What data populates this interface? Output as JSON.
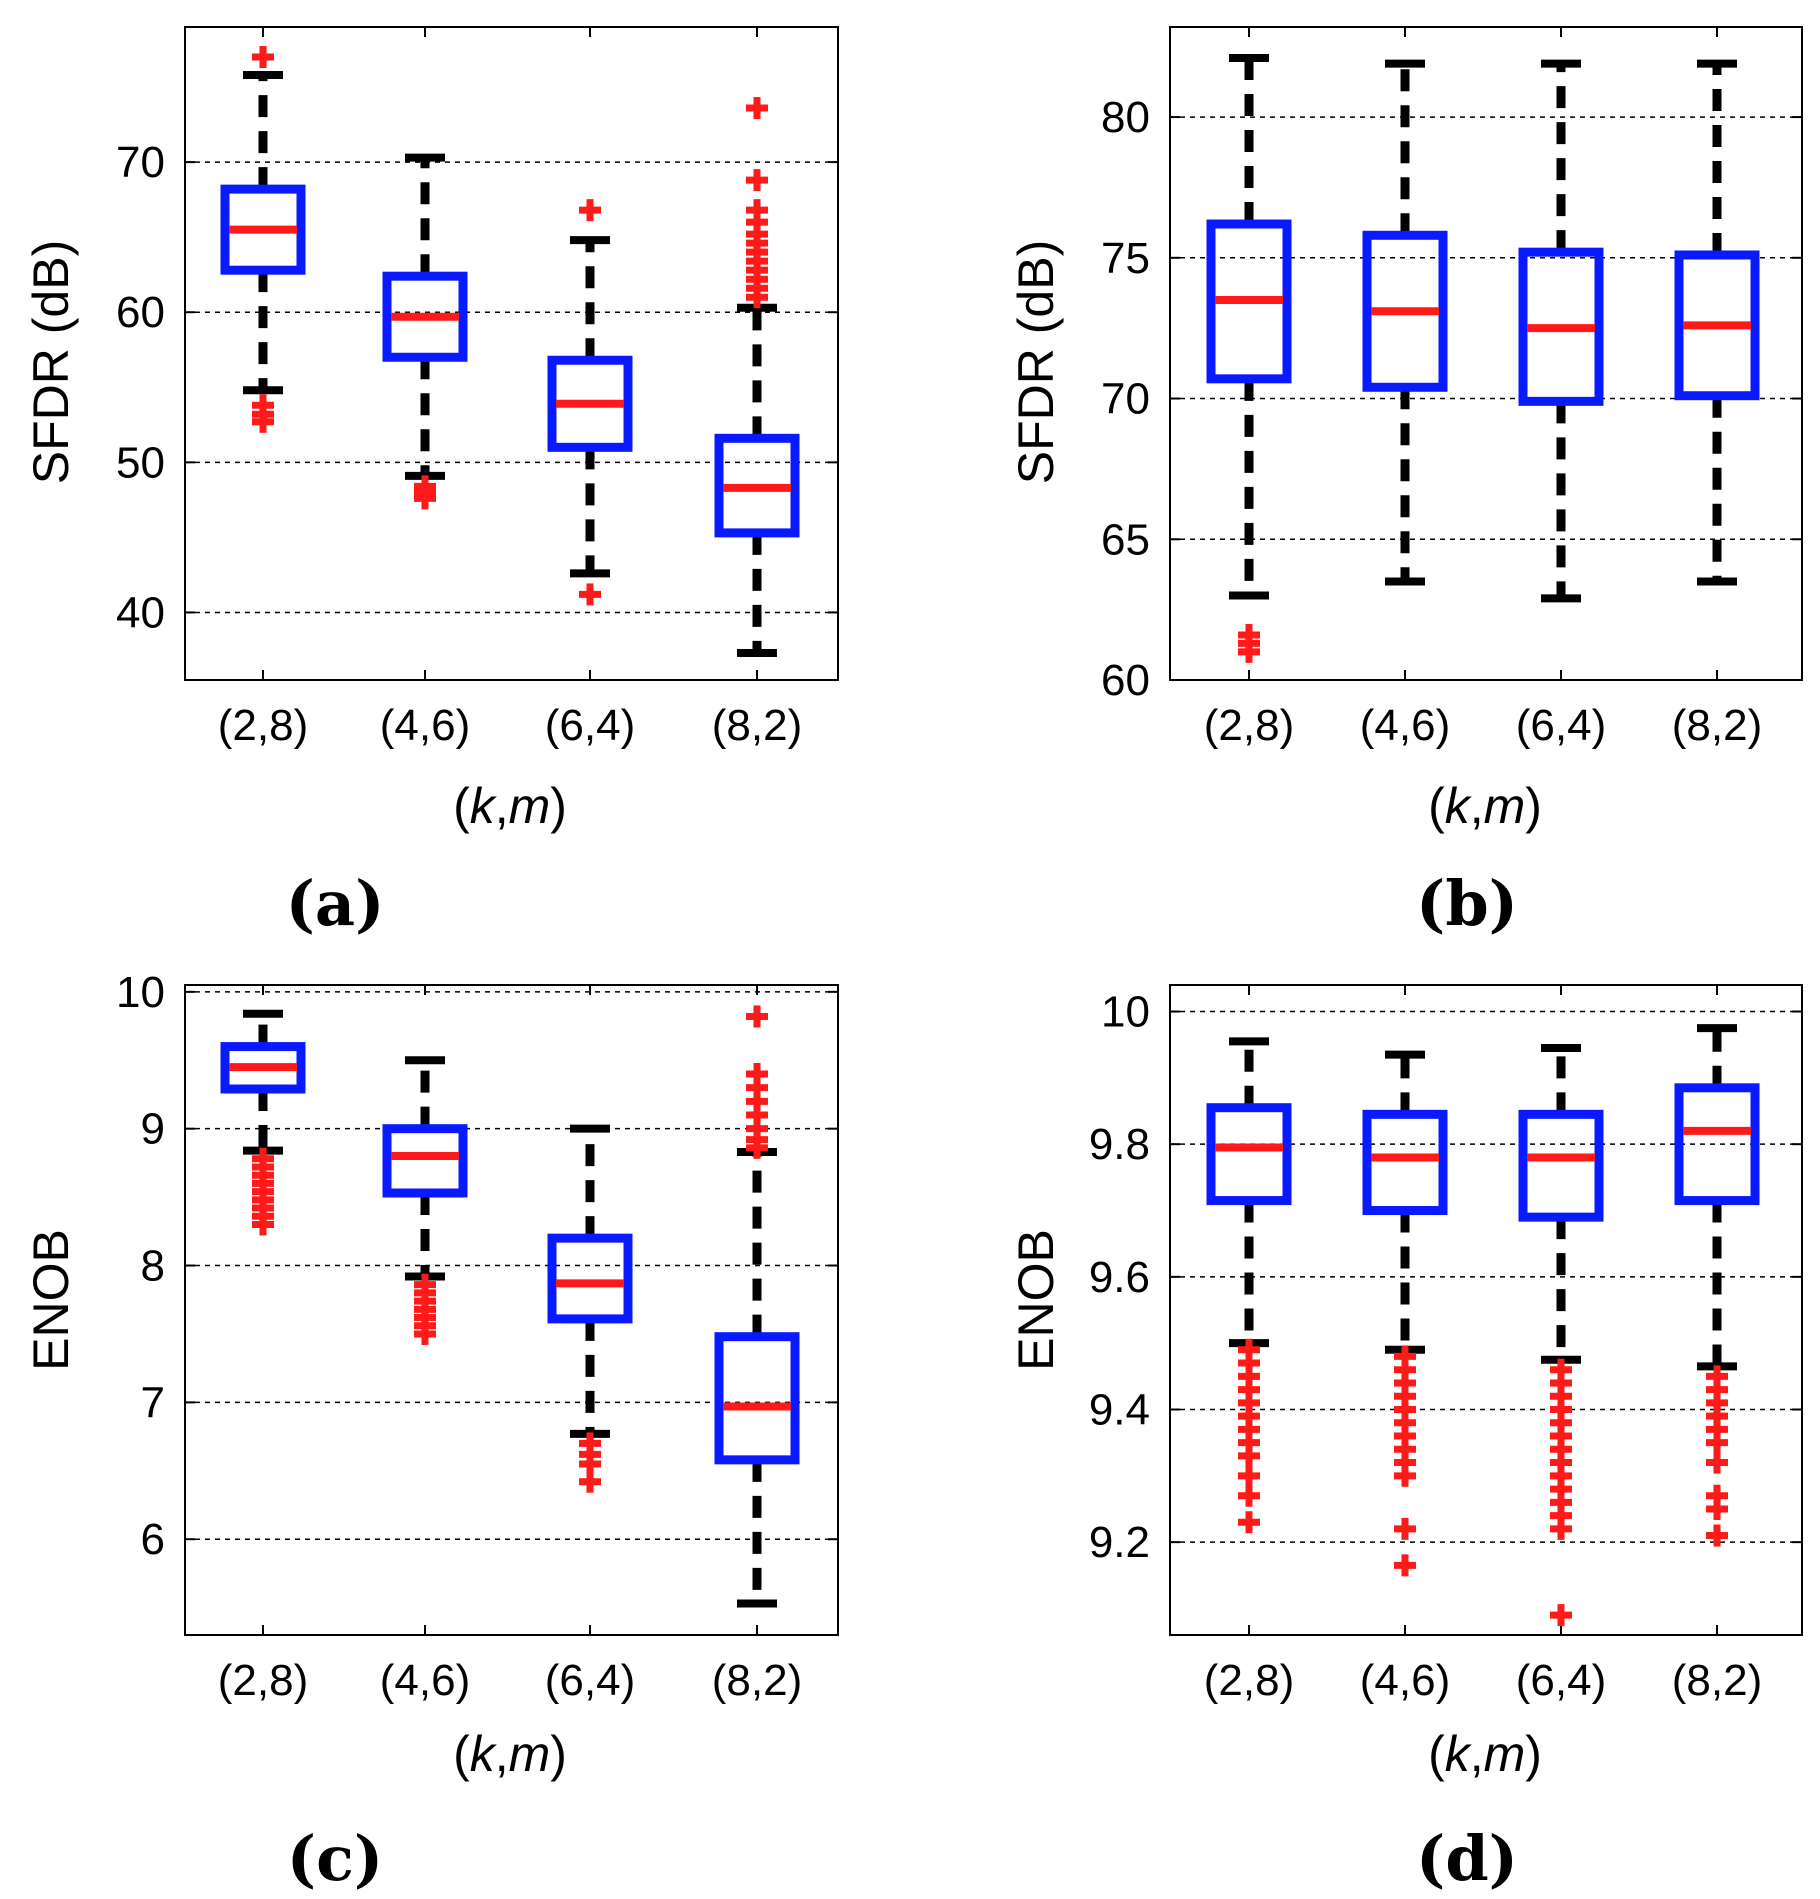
{
  "figure": {
    "x_axis_title": {
      "prefix": "(",
      "k": "k",
      "comma": ",",
      "m": "m",
      "suffix": ")"
    },
    "colors": {
      "box": "#0a1aff",
      "median": "#ff1a1a",
      "whisker": "#000000",
      "outlier": "#ff1a1a",
      "grid": "#000000"
    }
  },
  "chart_data": [
    {
      "id": "a",
      "panel_label": "(a)",
      "type": "box",
      "title": "",
      "xlabel": "(k,m)",
      "ylabel": "SFDR (dB)",
      "categories": [
        "(2,8)",
        "(4,6)",
        "(6,4)",
        "(8,2)"
      ],
      "ylim": [
        35.5,
        79
      ],
      "yticks": [
        40,
        50,
        60,
        70
      ],
      "ytick_labels": [
        "40",
        "50",
        "60",
        "70"
      ],
      "grid": true,
      "boxes": [
        {
          "category": "(2,8)",
          "whisker_low": 54.8,
          "q1": 62.8,
          "median": 65.5,
          "q3": 68.2,
          "whisker_high": 75.8,
          "outliers": [
            77.0,
            53.8,
            53.2,
            52.7
          ]
        },
        {
          "category": "(4,6)",
          "whisker_low": 49.1,
          "q1": 57.0,
          "median": 59.7,
          "q3": 62.4,
          "whisker_high": 70.3,
          "outliers": [
            48.4,
            48.0,
            47.6
          ]
        },
        {
          "category": "(6,4)",
          "whisker_low": 42.6,
          "q1": 51.0,
          "median": 53.9,
          "q3": 56.8,
          "whisker_high": 64.8,
          "outliers": [
            66.8,
            41.2
          ]
        },
        {
          "category": "(8,2)",
          "whisker_low": 37.3,
          "q1": 45.3,
          "median": 48.3,
          "q3": 51.6,
          "whisker_high": 60.3,
          "outliers": [
            73.6,
            68.8,
            66.8,
            66.0,
            65.2,
            64.6,
            64.0,
            63.4,
            62.8,
            62.2,
            61.6,
            61.0
          ]
        }
      ]
    },
    {
      "id": "b",
      "panel_label": "(b)",
      "type": "box",
      "title": "",
      "xlabel": "(k,m)",
      "ylabel": "SFDR (dB)",
      "categories": [
        "(2,8)",
        "(4,6)",
        "(6,4)",
        "(8,2)"
      ],
      "ylim": [
        60,
        83.2
      ],
      "yticks": [
        60,
        65,
        70,
        75,
        80
      ],
      "ytick_labels": [
        "60",
        "65",
        "70",
        "75",
        "80"
      ],
      "grid": true,
      "boxes": [
        {
          "category": "(2,8)",
          "whisker_low": 63.0,
          "q1": 70.7,
          "median": 73.5,
          "q3": 76.2,
          "whisker_high": 82.1,
          "outliers": [
            61.6,
            61.3,
            61.0
          ]
        },
        {
          "category": "(4,6)",
          "whisker_low": 63.5,
          "q1": 70.4,
          "median": 73.1,
          "q3": 75.8,
          "whisker_high": 81.9,
          "outliers": []
        },
        {
          "category": "(6,4)",
          "whisker_low": 62.9,
          "q1": 69.9,
          "median": 72.5,
          "q3": 75.2,
          "whisker_high": 81.9,
          "outliers": []
        },
        {
          "category": "(8,2)",
          "whisker_low": 63.5,
          "q1": 70.1,
          "median": 72.6,
          "q3": 75.1,
          "whisker_high": 81.9,
          "outliers": []
        }
      ]
    },
    {
      "id": "c",
      "panel_label": "(c)",
      "type": "box",
      "title": "",
      "xlabel": "(k,m)",
      "ylabel": "ENOB",
      "categories": [
        "(2,8)",
        "(4,6)",
        "(6,4)",
        "(8,2)"
      ],
      "ylim": [
        5.3,
        10.05
      ],
      "yticks": [
        6,
        7,
        8,
        9,
        10
      ],
      "ytick_labels": [
        "6",
        "7",
        "8",
        "9",
        "10"
      ],
      "grid": true,
      "boxes": [
        {
          "category": "(2,8)",
          "whisker_low": 8.84,
          "q1": 9.29,
          "median": 9.45,
          "q3": 9.6,
          "whisker_high": 9.84,
          "outliers": [
            8.78,
            8.72,
            8.66,
            8.6,
            8.54,
            8.48,
            8.42,
            8.36,
            8.3
          ]
        },
        {
          "category": "(4,6)",
          "whisker_low": 7.92,
          "q1": 8.53,
          "median": 8.8,
          "q3": 9.0,
          "whisker_high": 9.5,
          "outliers": [
            7.86,
            7.8,
            7.74,
            7.68,
            7.62,
            7.56,
            7.5
          ]
        },
        {
          "category": "(6,4)",
          "whisker_low": 6.77,
          "q1": 7.61,
          "median": 7.87,
          "q3": 8.2,
          "whisker_high": 9.0,
          "outliers": [
            6.7,
            6.62,
            6.55,
            6.42
          ]
        },
        {
          "category": "(8,2)",
          "whisker_low": 5.53,
          "q1": 6.58,
          "median": 6.97,
          "q3": 7.48,
          "whisker_high": 8.83,
          "outliers": [
            9.82,
            9.4,
            9.3,
            9.2,
            9.1,
            9.0,
            8.92,
            8.86
          ]
        }
      ]
    },
    {
      "id": "d",
      "panel_label": "(d)",
      "type": "box",
      "title": "",
      "xlabel": "(k,m)",
      "ylabel": "ENOB",
      "categories": [
        "(2,8)",
        "(4,6)",
        "(6,4)",
        "(8,2)"
      ],
      "ylim": [
        9.06,
        10.04
      ],
      "yticks": [
        9.2,
        9.4,
        9.6,
        9.8,
        10.0
      ],
      "ytick_labels": [
        "9.2",
        "9.4",
        "9.6",
        "9.8",
        "10"
      ],
      "grid": true,
      "boxes": [
        {
          "category": "(2,8)",
          "whisker_low": 9.5,
          "q1": 9.715,
          "median": 9.795,
          "q3": 9.855,
          "whisker_high": 9.955,
          "outliers": [
            9.49,
            9.47,
            9.45,
            9.43,
            9.41,
            9.39,
            9.37,
            9.35,
            9.33,
            9.3,
            9.27,
            9.23
          ]
        },
        {
          "category": "(4,6)",
          "whisker_low": 9.49,
          "q1": 9.7,
          "median": 9.78,
          "q3": 9.845,
          "whisker_high": 9.935,
          "outliers": [
            9.48,
            9.46,
            9.44,
            9.42,
            9.4,
            9.38,
            9.36,
            9.34,
            9.32,
            9.3,
            9.22,
            9.165
          ]
        },
        {
          "category": "(6,4)",
          "whisker_low": 9.475,
          "q1": 9.69,
          "median": 9.78,
          "q3": 9.845,
          "whisker_high": 9.945,
          "outliers": [
            9.46,
            9.44,
            9.42,
            9.4,
            9.38,
            9.36,
            9.34,
            9.32,
            9.3,
            9.28,
            9.26,
            9.24,
            9.22,
            9.09
          ]
        },
        {
          "category": "(8,2)",
          "whisker_low": 9.465,
          "q1": 9.715,
          "median": 9.82,
          "q3": 9.885,
          "whisker_high": 9.975,
          "outliers": [
            9.45,
            9.43,
            9.41,
            9.39,
            9.37,
            9.35,
            9.32,
            9.27,
            9.25,
            9.21
          ]
        }
      ]
    }
  ]
}
